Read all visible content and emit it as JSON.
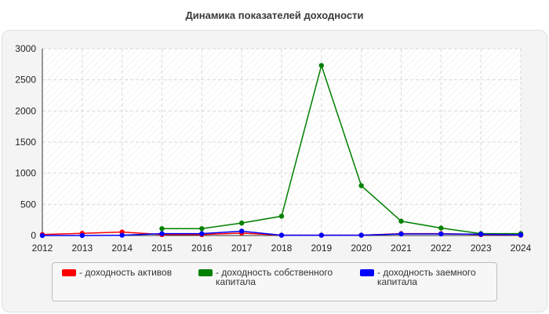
{
  "chart_data": {
    "type": "line",
    "title": "Динамика показателей доходности",
    "xlabel": "",
    "ylabel": "",
    "x": [
      2012,
      2013,
      2014,
      2015,
      2016,
      2017,
      2018,
      2019,
      2020,
      2021,
      2022,
      2023,
      2024
    ],
    "ylim": [
      0,
      3000
    ],
    "yticks": [
      0,
      500,
      1000,
      1500,
      2000,
      2500,
      3000
    ],
    "grid": true,
    "legend_position": "bottom",
    "series": [
      {
        "name": "- доходность активов",
        "color": "#ff0000",
        "values": [
          15,
          35,
          55,
          15,
          15,
          40,
          5,
          5,
          5,
          30,
          30,
          15,
          5
        ]
      },
      {
        "name": "- доходность собственного капитала",
        "color": "#008000",
        "values": [
          null,
          null,
          null,
          110,
          110,
          200,
          310,
          2730,
          800,
          230,
          120,
          30,
          30
        ]
      },
      {
        "name": "- доходность заемного капитала",
        "color": "#0000ff",
        "values": [
          0,
          0,
          5,
          30,
          30,
          70,
          5,
          5,
          5,
          25,
          25,
          20,
          10
        ]
      }
    ]
  }
}
